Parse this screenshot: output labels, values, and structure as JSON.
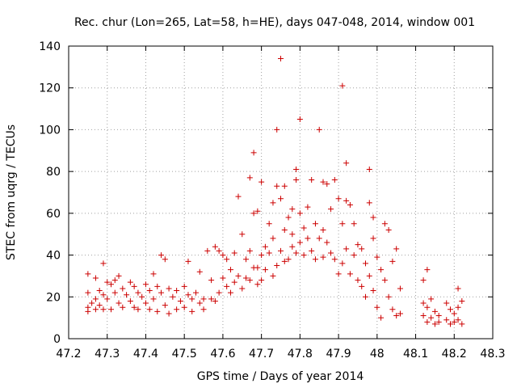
{
  "chart_data": {
    "type": "scatter",
    "title": "Rec. chur (Lon=265, Lat=58, h=HE), days 047-048, 2014, window 001",
    "xlabel": "GPS time / Days of year 2014",
    "ylabel": "STEC from uqrg / TECUs",
    "xlim": [
      47.2,
      48.3
    ],
    "ylim": [
      0,
      140
    ],
    "xticks": [
      "47.2",
      "47.3",
      "47.4",
      "47.5",
      "47.6",
      "47.7",
      "47.8",
      "47.9",
      "48",
      "48.1",
      "48.2",
      "48.3"
    ],
    "yticks": [
      "0",
      "20",
      "40",
      "60",
      "80",
      "100",
      "120",
      "140"
    ],
    "grid": true,
    "marker": "+",
    "color": "#cc0000",
    "series": [
      {
        "points": [
          [
            47.25,
            31
          ],
          [
            47.25,
            22
          ],
          [
            47.25,
            15
          ],
          [
            47.25,
            13
          ],
          [
            47.26,
            17
          ],
          [
            47.27,
            29
          ],
          [
            47.27,
            19
          ],
          [
            47.27,
            14
          ],
          [
            47.28,
            23
          ],
          [
            47.28,
            16
          ],
          [
            47.29,
            36
          ],
          [
            47.29,
            21
          ],
          [
            47.29,
            14
          ],
          [
            47.3,
            27
          ],
          [
            47.3,
            19
          ],
          [
            47.31,
            26
          ],
          [
            47.31,
            14
          ],
          [
            47.32,
            28
          ],
          [
            47.32,
            22
          ],
          [
            47.33,
            30
          ],
          [
            47.33,
            17
          ],
          [
            47.34,
            24
          ],
          [
            47.34,
            15
          ],
          [
            47.35,
            21
          ],
          [
            47.36,
            27
          ],
          [
            47.36,
            18
          ],
          [
            47.37,
            25
          ],
          [
            47.37,
            15
          ],
          [
            47.38,
            22
          ],
          [
            47.38,
            14
          ],
          [
            47.39,
            20
          ],
          [
            47.4,
            26
          ],
          [
            47.4,
            17
          ],
          [
            47.41,
            23
          ],
          [
            47.41,
            14
          ],
          [
            47.42,
            31
          ],
          [
            47.42,
            19
          ],
          [
            47.43,
            25
          ],
          [
            47.43,
            13
          ],
          [
            47.44,
            40
          ],
          [
            47.44,
            22
          ],
          [
            47.45,
            38
          ],
          [
            47.45,
            16
          ],
          [
            47.46,
            24
          ],
          [
            47.46,
            12
          ],
          [
            47.47,
            20
          ],
          [
            47.48,
            23
          ],
          [
            47.48,
            14
          ],
          [
            47.49,
            18
          ],
          [
            47.5,
            25
          ],
          [
            47.5,
            15
          ],
          [
            47.51,
            37
          ],
          [
            47.51,
            21
          ],
          [
            47.52,
            19
          ],
          [
            47.52,
            13
          ],
          [
            47.53,
            22
          ],
          [
            47.54,
            32
          ],
          [
            47.54,
            17
          ],
          [
            47.55,
            19
          ],
          [
            47.55,
            14
          ],
          [
            47.56,
            42
          ],
          [
            47.57,
            28
          ],
          [
            47.57,
            19
          ],
          [
            47.58,
            44
          ],
          [
            47.58,
            18
          ],
          [
            47.59,
            42
          ],
          [
            47.59,
            22
          ],
          [
            47.6,
            40
          ],
          [
            47.6,
            29
          ],
          [
            47.61,
            38
          ],
          [
            47.61,
            25
          ],
          [
            47.62,
            33
          ],
          [
            47.62,
            22
          ],
          [
            47.63,
            41
          ],
          [
            47.63,
            27
          ],
          [
            47.64,
            68
          ],
          [
            47.64,
            30
          ],
          [
            47.65,
            50
          ],
          [
            47.65,
            24
          ],
          [
            47.66,
            38
          ],
          [
            47.66,
            29
          ],
          [
            47.67,
            77
          ],
          [
            47.67,
            42
          ],
          [
            47.67,
            28
          ],
          [
            47.68,
            89
          ],
          [
            47.68,
            60
          ],
          [
            47.68,
            34
          ],
          [
            47.69,
            61
          ],
          [
            47.69,
            34
          ],
          [
            47.69,
            26
          ],
          [
            47.7,
            75
          ],
          [
            47.7,
            40
          ],
          [
            47.7,
            28
          ],
          [
            47.71,
            44
          ],
          [
            47.71,
            33
          ],
          [
            47.72,
            55
          ],
          [
            47.72,
            41
          ],
          [
            47.73,
            65
          ],
          [
            47.73,
            48
          ],
          [
            47.73,
            30
          ],
          [
            47.74,
            100
          ],
          [
            47.74,
            73
          ],
          [
            47.74,
            35
          ],
          [
            47.75,
            134
          ],
          [
            47.75,
            67
          ],
          [
            47.75,
            42
          ],
          [
            47.76,
            73
          ],
          [
            47.76,
            52
          ],
          [
            47.76,
            37
          ],
          [
            47.77,
            58
          ],
          [
            47.77,
            38
          ],
          [
            47.78,
            62
          ],
          [
            47.78,
            50
          ],
          [
            47.78,
            44
          ],
          [
            47.79,
            81
          ],
          [
            47.79,
            76
          ],
          [
            47.79,
            41
          ],
          [
            47.8,
            105
          ],
          [
            47.8,
            60
          ],
          [
            47.8,
            46
          ],
          [
            47.81,
            53
          ],
          [
            47.81,
            40
          ],
          [
            47.82,
            63
          ],
          [
            47.82,
            48
          ],
          [
            47.83,
            76
          ],
          [
            47.83,
            42
          ],
          [
            47.84,
            55
          ],
          [
            47.84,
            38
          ],
          [
            47.85,
            100
          ],
          [
            47.85,
            48
          ],
          [
            47.86,
            75
          ],
          [
            47.86,
            52
          ],
          [
            47.86,
            39
          ],
          [
            47.87,
            74
          ],
          [
            47.87,
            46
          ],
          [
            47.88,
            62
          ],
          [
            47.88,
            41
          ],
          [
            47.89,
            76
          ],
          [
            47.89,
            38
          ],
          [
            47.9,
            67
          ],
          [
            47.9,
            31
          ],
          [
            47.91,
            121
          ],
          [
            47.91,
            55
          ],
          [
            47.91,
            36
          ],
          [
            47.92,
            84
          ],
          [
            47.92,
            66
          ],
          [
            47.92,
            43
          ],
          [
            47.93,
            64
          ],
          [
            47.93,
            31
          ],
          [
            47.94,
            55
          ],
          [
            47.94,
            40
          ],
          [
            47.95,
            45
          ],
          [
            47.95,
            28
          ],
          [
            47.96,
            43
          ],
          [
            47.96,
            25
          ],
          [
            47.97,
            36
          ],
          [
            47.97,
            20
          ],
          [
            47.98,
            81
          ],
          [
            47.98,
            65
          ],
          [
            47.98,
            30
          ],
          [
            47.99,
            58
          ],
          [
            47.99,
            48
          ],
          [
            47.99,
            23
          ],
          [
            48.0,
            39
          ],
          [
            48.0,
            15
          ],
          [
            48.01,
            33
          ],
          [
            48.01,
            10
          ],
          [
            48.02,
            55
          ],
          [
            48.02,
            28
          ],
          [
            48.03,
            52
          ],
          [
            48.03,
            20
          ],
          [
            48.04,
            37
          ],
          [
            48.04,
            14
          ],
          [
            48.05,
            43
          ],
          [
            48.05,
            11
          ],
          [
            48.06,
            24
          ],
          [
            48.06,
            12
          ],
          [
            48.12,
            28
          ],
          [
            48.12,
            17
          ],
          [
            48.12,
            11
          ],
          [
            48.13,
            33
          ],
          [
            48.13,
            15
          ],
          [
            48.13,
            8
          ],
          [
            48.14,
            19
          ],
          [
            48.14,
            10
          ],
          [
            48.15,
            13
          ],
          [
            48.15,
            7
          ],
          [
            48.16,
            11
          ],
          [
            48.16,
            8
          ],
          [
            48.18,
            17
          ],
          [
            48.18,
            9
          ],
          [
            48.19,
            14
          ],
          [
            48.19,
            7
          ],
          [
            48.2,
            12
          ],
          [
            48.2,
            8
          ],
          [
            48.21,
            24
          ],
          [
            48.21,
            15
          ],
          [
            48.21,
            9
          ],
          [
            48.22,
            18
          ],
          [
            48.22,
            7
          ]
        ]
      }
    ]
  }
}
